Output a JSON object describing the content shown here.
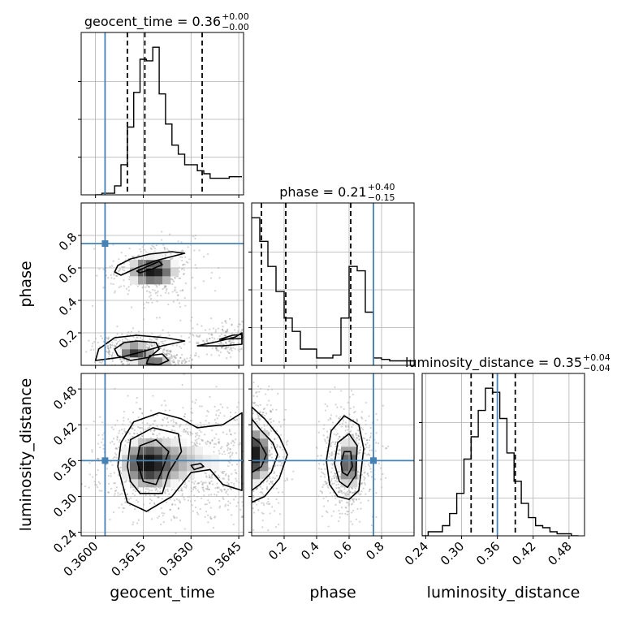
{
  "chart_data": {
    "type": "corner",
    "parameters": [
      "geocent_time",
      "phase",
      "luminosity_distance"
    ],
    "titles": [
      {
        "param": "geocent_time",
        "text": "geocent_time = 0.36",
        "plus": "+0.00",
        "minus": "−0.00"
      },
      {
        "param": "phase",
        "text": "phase = 0.21",
        "plus": "+0.40",
        "minus": "−0.15"
      },
      {
        "param": "luminosity_distance",
        "text": "luminosity_distance = 0.35",
        "plus": "+0.04",
        "minus": "−0.04"
      }
    ],
    "ranges": {
      "geocent_time": [
        0.35955,
        0.36465
      ],
      "phase": [
        0.0,
        1.0
      ],
      "luminosity_distance": [
        0.234,
        0.506
      ]
    },
    "ticks": {
      "geocent_time": [
        0.36,
        0.3615,
        0.363,
        0.3645
      ],
      "phase": [
        0.2,
        0.4,
        0.6,
        0.8
      ],
      "luminosity_distance": [
        0.24,
        0.3,
        0.36,
        0.42,
        0.48
      ]
    },
    "tick_labels": {
      "geocent_time": [
        "0.3600",
        "0.3615",
        "0.3630",
        "0.3645"
      ],
      "phase": [
        "0.2",
        "0.4",
        "0.6",
        "0.8"
      ],
      "luminosity_distance": [
        "0.24",
        "0.30",
        "0.36",
        "0.42",
        "0.48"
      ]
    },
    "injection": {
      "geocent_time": 0.3603,
      "phase": 0.75,
      "luminosity_distance": 0.36
    },
    "quantiles": {
      "geocent_time": [
        0.361,
        0.36155,
        0.36335
      ],
      "phase": [
        0.06,
        0.21,
        0.61
      ],
      "luminosity_distance": [
        0.316,
        0.352,
        0.39
      ]
    },
    "histograms": {
      "geocent_time": {
        "edges": [
          0.36,
          0.3602,
          0.3604,
          0.3606,
          0.3608,
          0.361,
          0.3612,
          0.3614,
          0.3616,
          0.3618,
          0.362,
          0.3622,
          0.3624,
          0.3626,
          0.3628,
          0.363,
          0.3632,
          0.3634,
          0.3636,
          0.3638,
          0.364,
          0.3642,
          0.3644,
          0.3646
        ],
        "counts": [
          0,
          1,
          1,
          6,
          20,
          45,
          68,
          90,
          89,
          98,
          67,
          47,
          33,
          27,
          20,
          20,
          16,
          14,
          11,
          11,
          11,
          12,
          12
        ]
      },
      "phase": {
        "edges": [
          0.0,
          0.05,
          0.1,
          0.15,
          0.2,
          0.25,
          0.3,
          0.35,
          0.4,
          0.45,
          0.5,
          0.55,
          0.6,
          0.65,
          0.7,
          0.75,
          0.8,
          0.85,
          0.9,
          0.95,
          1.0
        ],
        "counts": [
          100,
          84,
          67,
          50,
          32,
          23,
          11,
          11,
          5,
          5,
          7,
          32,
          67,
          64,
          36,
          5,
          4,
          3,
          3,
          3
        ]
      },
      "luminosity_distance": {
        "edges": [
          0.232,
          0.244,
          0.256,
          0.268,
          0.28,
          0.292,
          0.304,
          0.316,
          0.328,
          0.34,
          0.352,
          0.364,
          0.376,
          0.388,
          0.4,
          0.412,
          0.424,
          0.436,
          0.448,
          0.46,
          0.472,
          0.484,
          0.496
        ],
        "counts": [
          0,
          2,
          2,
          5,
          11,
          21,
          38,
          49,
          62,
          73,
          71,
          58,
          41,
          27,
          16,
          9,
          5,
          4,
          2,
          1,
          1,
          0
        ]
      }
    },
    "density_blobs": {
      "phase|geocent_time": [
        {
          "x": 0.3618,
          "y": 0.58,
          "sx": 0.00055,
          "sy": 0.07,
          "w": 1.0
        },
        {
          "x": 0.3612,
          "y": 0.09,
          "sx": 0.0004,
          "sy": 0.04,
          "w": 0.9
        },
        {
          "x": 0.3619,
          "y": 0.03,
          "sx": 0.0004,
          "sy": 0.03,
          "w": 0.7
        },
        {
          "x": 0.3641,
          "y": 0.17,
          "sx": 0.0004,
          "sy": 0.04,
          "w": 0.3
        }
      ],
      "luminosity_distance|geocent_time": [
        {
          "x": 0.3616,
          "y": 0.355,
          "sx": 0.00055,
          "sy": 0.03,
          "w": 1.0
        },
        {
          "x": 0.3628,
          "y": 0.36,
          "sx": 0.0006,
          "sy": 0.035,
          "w": 0.45
        },
        {
          "x": 0.364,
          "y": 0.355,
          "sx": 0.0005,
          "sy": 0.035,
          "w": 0.3
        }
      ],
      "luminosity_distance|phase": [
        {
          "x": 0.03,
          "y": 0.37,
          "sx": 0.06,
          "sy": 0.035,
          "w": 1.0
        },
        {
          "x": 0.6,
          "y": 0.355,
          "sx": 0.06,
          "sy": 0.032,
          "w": 0.85
        }
      ]
    },
    "contours": {
      "phase|geocent_time": [
        [
          [
            0.3608,
            0.555
          ],
          [
            0.3613,
            0.6
          ],
          [
            0.3619,
            0.645
          ],
          [
            0.3625,
            0.675
          ],
          [
            0.3628,
            0.69
          ],
          [
            0.3624,
            0.7
          ],
          [
            0.3617,
            0.685
          ],
          [
            0.3611,
            0.655
          ],
          [
            0.3607,
            0.615
          ],
          [
            0.3606,
            0.575
          ]
        ],
        [
          [
            0.3613,
            0.58
          ],
          [
            0.3617,
            0.615
          ],
          [
            0.362,
            0.64
          ],
          [
            0.3621,
            0.62
          ],
          [
            0.3618,
            0.595
          ],
          [
            0.3614,
            0.57
          ]
        ],
        [
          [
            0.3607,
            0.06
          ],
          [
            0.3611,
            0.03
          ],
          [
            0.3617,
            0.05
          ],
          [
            0.362,
            0.1
          ],
          [
            0.3619,
            0.14
          ],
          [
            0.3613,
            0.15
          ],
          [
            0.3609,
            0.14
          ],
          [
            0.3606,
            0.1
          ]
        ],
        [
          [
            0.3616,
            0.01
          ],
          [
            0.362,
            0.005
          ],
          [
            0.3623,
            0.03
          ],
          [
            0.3621,
            0.07
          ],
          [
            0.3617,
            0.06
          ]
        ],
        [
          [
            0.36,
            0.03
          ],
          [
            0.3608,
            0.05
          ],
          [
            0.3614,
            0.08
          ],
          [
            0.3621,
            0.12
          ],
          [
            0.3628,
            0.15
          ],
          [
            0.3622,
            0.17
          ],
          [
            0.3613,
            0.185
          ],
          [
            0.3606,
            0.17
          ],
          [
            0.3601,
            0.1
          ]
        ],
        [
          [
            0.3632,
            0.12
          ],
          [
            0.3638,
            0.145
          ],
          [
            0.3644,
            0.175
          ],
          [
            0.3646,
            0.2
          ],
          [
            0.3646,
            0.13
          ],
          [
            0.364,
            0.12
          ]
        ],
        [
          [
            0.3639,
            0.16
          ],
          [
            0.3643,
            0.185
          ],
          [
            0.3646,
            0.19
          ],
          [
            0.3646,
            0.165
          ]
        ]
      ],
      "luminosity_distance|geocent_time": [
        [
          [
            0.3607,
            0.35
          ],
          [
            0.3608,
            0.39
          ],
          [
            0.3612,
            0.425
          ],
          [
            0.362,
            0.44
          ],
          [
            0.3627,
            0.43
          ],
          [
            0.3632,
            0.415
          ],
          [
            0.364,
            0.42
          ],
          [
            0.3646,
            0.44
          ],
          [
            0.3646,
            0.31
          ],
          [
            0.364,
            0.32
          ],
          [
            0.3636,
            0.345
          ],
          [
            0.363,
            0.34
          ],
          [
            0.3624,
            0.3
          ],
          [
            0.3616,
            0.275
          ],
          [
            0.361,
            0.29
          ]
        ],
        [
          [
            0.361,
            0.35
          ],
          [
            0.3611,
            0.395
          ],
          [
            0.3618,
            0.415
          ],
          [
            0.3626,
            0.405
          ],
          [
            0.3627,
            0.375
          ],
          [
            0.3623,
            0.34
          ],
          [
            0.3621,
            0.305
          ],
          [
            0.3614,
            0.305
          ],
          [
            0.3611,
            0.325
          ]
        ],
        [
          [
            0.3613,
            0.36
          ],
          [
            0.3614,
            0.385
          ],
          [
            0.3619,
            0.395
          ],
          [
            0.3623,
            0.375
          ],
          [
            0.3621,
            0.345
          ],
          [
            0.3619,
            0.32
          ],
          [
            0.3615,
            0.325
          ]
        ],
        [
          [
            0.3631,
            0.345
          ],
          [
            0.3634,
            0.35
          ],
          [
            0.3633,
            0.355
          ],
          [
            0.363,
            0.352
          ]
        ]
      ],
      "luminosity_distance|phase": [
        [
          [
            0.0,
            0.29
          ],
          [
            0.0,
            0.45
          ],
          [
            0.08,
            0.43
          ],
          [
            0.17,
            0.4
          ],
          [
            0.22,
            0.37
          ],
          [
            0.17,
            0.33
          ],
          [
            0.08,
            0.3
          ]
        ],
        [
          [
            0.0,
            0.31
          ],
          [
            0.0,
            0.43
          ],
          [
            0.06,
            0.41
          ],
          [
            0.13,
            0.39
          ],
          [
            0.16,
            0.37
          ],
          [
            0.12,
            0.34
          ],
          [
            0.05,
            0.32
          ]
        ],
        [
          [
            0.0,
            0.34
          ],
          [
            0.0,
            0.4
          ],
          [
            0.05,
            0.39
          ],
          [
            0.09,
            0.37
          ],
          [
            0.06,
            0.35
          ]
        ],
        [
          [
            0.46,
            0.36
          ],
          [
            0.49,
            0.41
          ],
          [
            0.57,
            0.435
          ],
          [
            0.66,
            0.42
          ],
          [
            0.69,
            0.38
          ],
          [
            0.66,
            0.31
          ],
          [
            0.6,
            0.295
          ],
          [
            0.53,
            0.3
          ],
          [
            0.48,
            0.32
          ]
        ],
        [
          [
            0.51,
            0.355
          ],
          [
            0.53,
            0.39
          ],
          [
            0.6,
            0.405
          ],
          [
            0.65,
            0.385
          ],
          [
            0.64,
            0.335
          ],
          [
            0.59,
            0.315
          ],
          [
            0.54,
            0.325
          ]
        ],
        [
          [
            0.55,
            0.355
          ],
          [
            0.57,
            0.375
          ],
          [
            0.61,
            0.375
          ],
          [
            0.62,
            0.35
          ],
          [
            0.59,
            0.335
          ],
          [
            0.56,
            0.34
          ]
        ]
      ]
    },
    "colors": {
      "line": "#000000",
      "truth": "#4682b4",
      "grid": "#b0b0b0",
      "scatter": "#808080"
    }
  }
}
